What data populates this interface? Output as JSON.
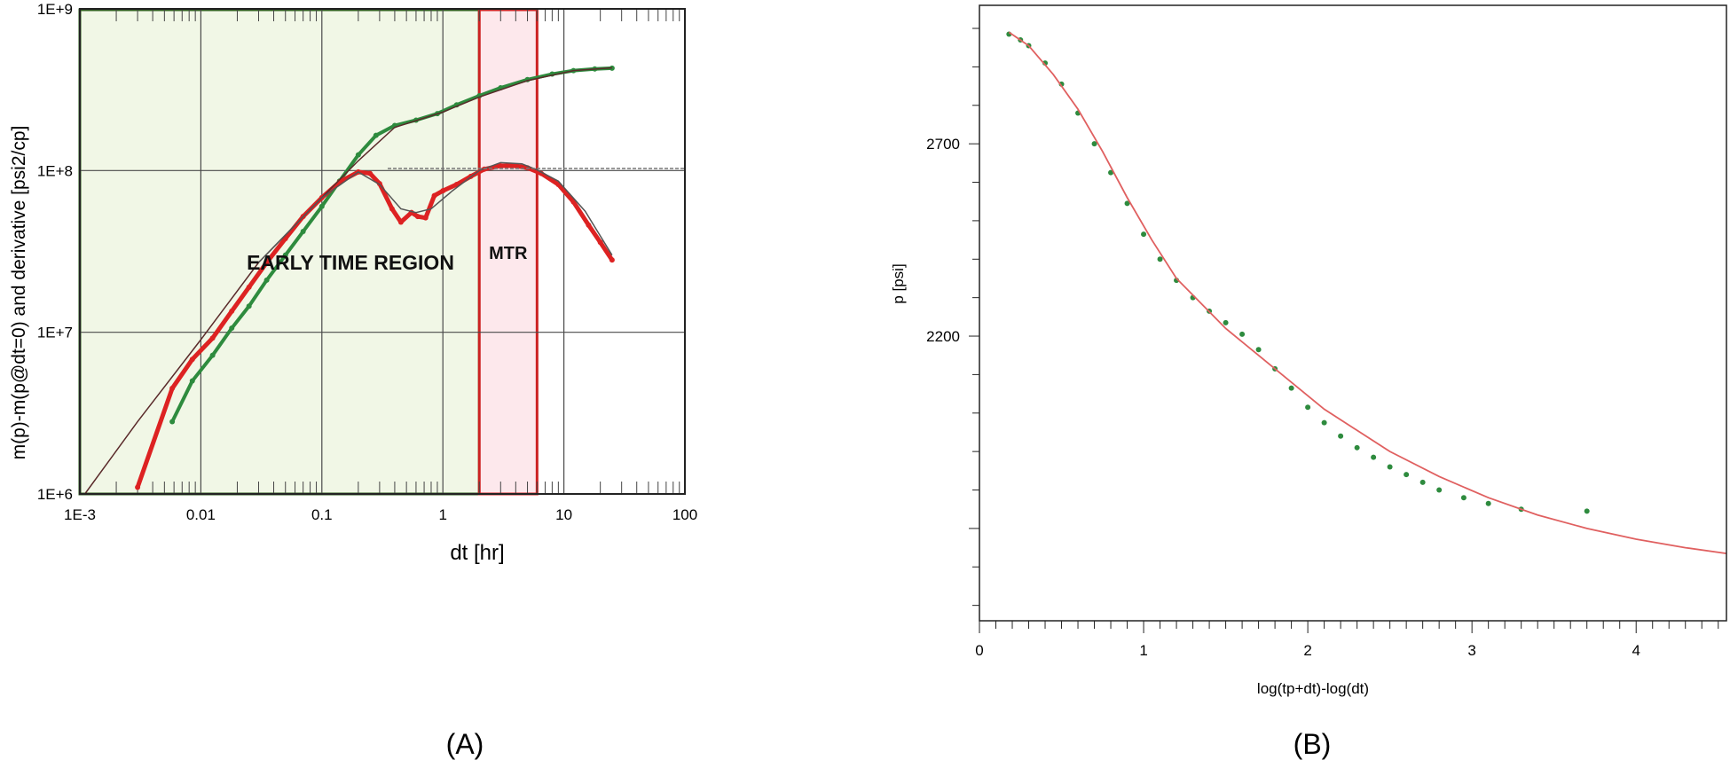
{
  "chart_data": [
    {
      "type": "scatter",
      "panel_label": "(A)",
      "xlabel": "dt [hr]",
      "ylabel": "m(p)-m(p@dt=0) and derivative [psi2/cp]",
      "x_scale": "log",
      "y_scale": "log",
      "xlim": [
        0.001,
        100
      ],
      "ylim": [
        1000000,
        1000000000
      ],
      "x_ticks": [
        {
          "value": 0.001,
          "label": "1E-3"
        },
        {
          "value": 0.01,
          "label": "0.01"
        },
        {
          "value": 0.1,
          "label": "0.1"
        },
        {
          "value": 1,
          "label": "1"
        },
        {
          "value": 10,
          "label": "10"
        },
        {
          "value": 100,
          "label": "100"
        }
      ],
      "y_ticks": [
        {
          "value": 1000000,
          "label": "1E+6"
        },
        {
          "value": 10000000,
          "label": "1E+7"
        },
        {
          "value": 100000000,
          "label": "1E+8"
        },
        {
          "value": 1000000000,
          "label": "1E+9"
        }
      ],
      "grid": true,
      "regions": [
        {
          "label": "EARLY TIME REGION",
          "x_range": [
            0.001,
            2.0
          ],
          "color": "#f1f7e6",
          "border": "#2e5e1e"
        },
        {
          "label": "MTR",
          "x_range": [
            2.0,
            6.0
          ],
          "color": "#fde8ec",
          "border": "#cc2222"
        }
      ],
      "series": [
        {
          "role": "pressure-change",
          "color": "#2e8b3e",
          "x": [
            0.0058,
            0.0085,
            0.0125,
            0.018,
            0.025,
            0.035,
            0.05,
            0.07,
            0.1,
            0.14,
            0.2,
            0.28,
            0.4,
            0.6,
            0.9,
            1.3,
            2.0,
            3.0,
            5.0,
            8.0,
            12.0,
            18.0,
            25.0
          ],
          "y": [
            2800000,
            5000000,
            7200000,
            10600000,
            14500000,
            21000000,
            30000000,
            42000000,
            60000000,
            86000000,
            125000000,
            165000000,
            190000000,
            205000000,
            225000000,
            255000000,
            290000000,
            325000000,
            365000000,
            395000000,
            415000000,
            425000000,
            430000000
          ]
        },
        {
          "role": "derivative",
          "color": "#dd2222",
          "x": [
            0.003,
            0.0058,
            0.0085,
            0.0125,
            0.018,
            0.025,
            0.035,
            0.05,
            0.07,
            0.1,
            0.14,
            0.2,
            0.25,
            0.3,
            0.38,
            0.45,
            0.55,
            0.62,
            0.72,
            0.85,
            1.0,
            1.3,
            1.7,
            2.2,
            3.0,
            4.0,
            5.0,
            6.5,
            9.0,
            12.0,
            16.0,
            20.0,
            25.0
          ],
          "y": [
            1100000,
            4500000,
            6800000,
            9200000,
            13500000,
            19000000,
            27000000,
            38000000,
            52000000,
            68000000,
            85000000,
            98000000,
            96000000,
            83000000,
            58000000,
            48000000,
            55000000,
            52000000,
            51000000,
            70000000,
            75000000,
            82000000,
            92000000,
            102000000,
            107000000,
            107000000,
            104000000,
            96000000,
            82000000,
            64000000,
            46000000,
            36000000,
            28000000
          ]
        },
        {
          "role": "model-pressure",
          "color": "#5a2a2a",
          "x": [
            0.0011,
            0.003,
            0.01,
            0.03,
            0.1,
            0.2,
            0.4,
            1.0,
            2.0,
            5.0,
            12.0,
            25.0
          ],
          "y": [
            1000000,
            2800000,
            9000000,
            27000000,
            68000000,
            115000000,
            185000000,
            230000000,
            285000000,
            360000000,
            415000000,
            432000000
          ]
        },
        {
          "role": "model-derivative",
          "color": "#555555",
          "x": [
            0.03,
            0.1,
            0.2,
            0.3,
            0.45,
            0.6,
            0.8,
            1.2,
            2.0,
            3.0,
            4.5,
            6.0,
            9.0,
            15.0,
            25.0
          ],
          "y": [
            27000000,
            68000000,
            98000000,
            82000000,
            58000000,
            55000000,
            58000000,
            75000000,
            100000000,
            112000000,
            110000000,
            101000000,
            86000000,
            56000000,
            30000000
          ]
        },
        {
          "role": "radial-flow-line",
          "color": "#777777",
          "x": [
            0.35,
            100
          ],
          "y": [
            103000000,
            103000000
          ]
        }
      ]
    },
    {
      "type": "scatter",
      "panel_label": "(B)",
      "xlabel": "log(tp+dt)-log(dt)",
      "ylabel": "p [psi]",
      "xlim": [
        0,
        4.55
      ],
      "ylim": [
        1460,
        3060
      ],
      "x_ticks": [
        {
          "value": 0,
          "label": "0"
        },
        {
          "value": 1,
          "label": "1"
        },
        {
          "value": 2,
          "label": "2"
        },
        {
          "value": 3,
          "label": "3"
        },
        {
          "value": 4,
          "label": "4"
        }
      ],
      "y_ticks": [
        {
          "value": 2200,
          "label": "2200"
        },
        {
          "value": 2700,
          "label": "2700"
        }
      ],
      "grid": false,
      "series": [
        {
          "role": "measured",
          "color": "#2e8b3e",
          "x": [
            0.18,
            0.25,
            0.3,
            0.4,
            0.5,
            0.6,
            0.7,
            0.8,
            0.9,
            1.0,
            1.1,
            1.2,
            1.3,
            1.4,
            1.5,
            1.6,
            1.7,
            1.8,
            1.9,
            2.0,
            2.1,
            2.2,
            2.3,
            2.4,
            2.5,
            2.6,
            2.7,
            2.8,
            2.95,
            3.1,
            3.3,
            3.7
          ],
          "y": [
            2985,
            2970,
            2955,
            2910,
            2855,
            2780,
            2700,
            2625,
            2545,
            2465,
            2400,
            2345,
            2300,
            2265,
            2235,
            2205,
            2165,
            2115,
            2065,
            2015,
            1975,
            1940,
            1910,
            1885,
            1860,
            1840,
            1820,
            1800,
            1780,
            1765,
            1750,
            1745
          ]
        },
        {
          "role": "model",
          "color": "#e06060",
          "x": [
            0.18,
            0.3,
            0.45,
            0.6,
            0.75,
            0.9,
            1.05,
            1.2,
            1.35,
            1.5,
            1.7,
            1.9,
            2.1,
            2.3,
            2.5,
            2.8,
            3.1,
            3.4,
            3.7,
            4.0,
            4.3,
            4.55
          ],
          "y": [
            2990,
            2955,
            2880,
            2790,
            2680,
            2560,
            2450,
            2350,
            2285,
            2220,
            2150,
            2080,
            2010,
            1955,
            1900,
            1835,
            1780,
            1735,
            1700,
            1672,
            1650,
            1635
          ]
        }
      ]
    }
  ]
}
